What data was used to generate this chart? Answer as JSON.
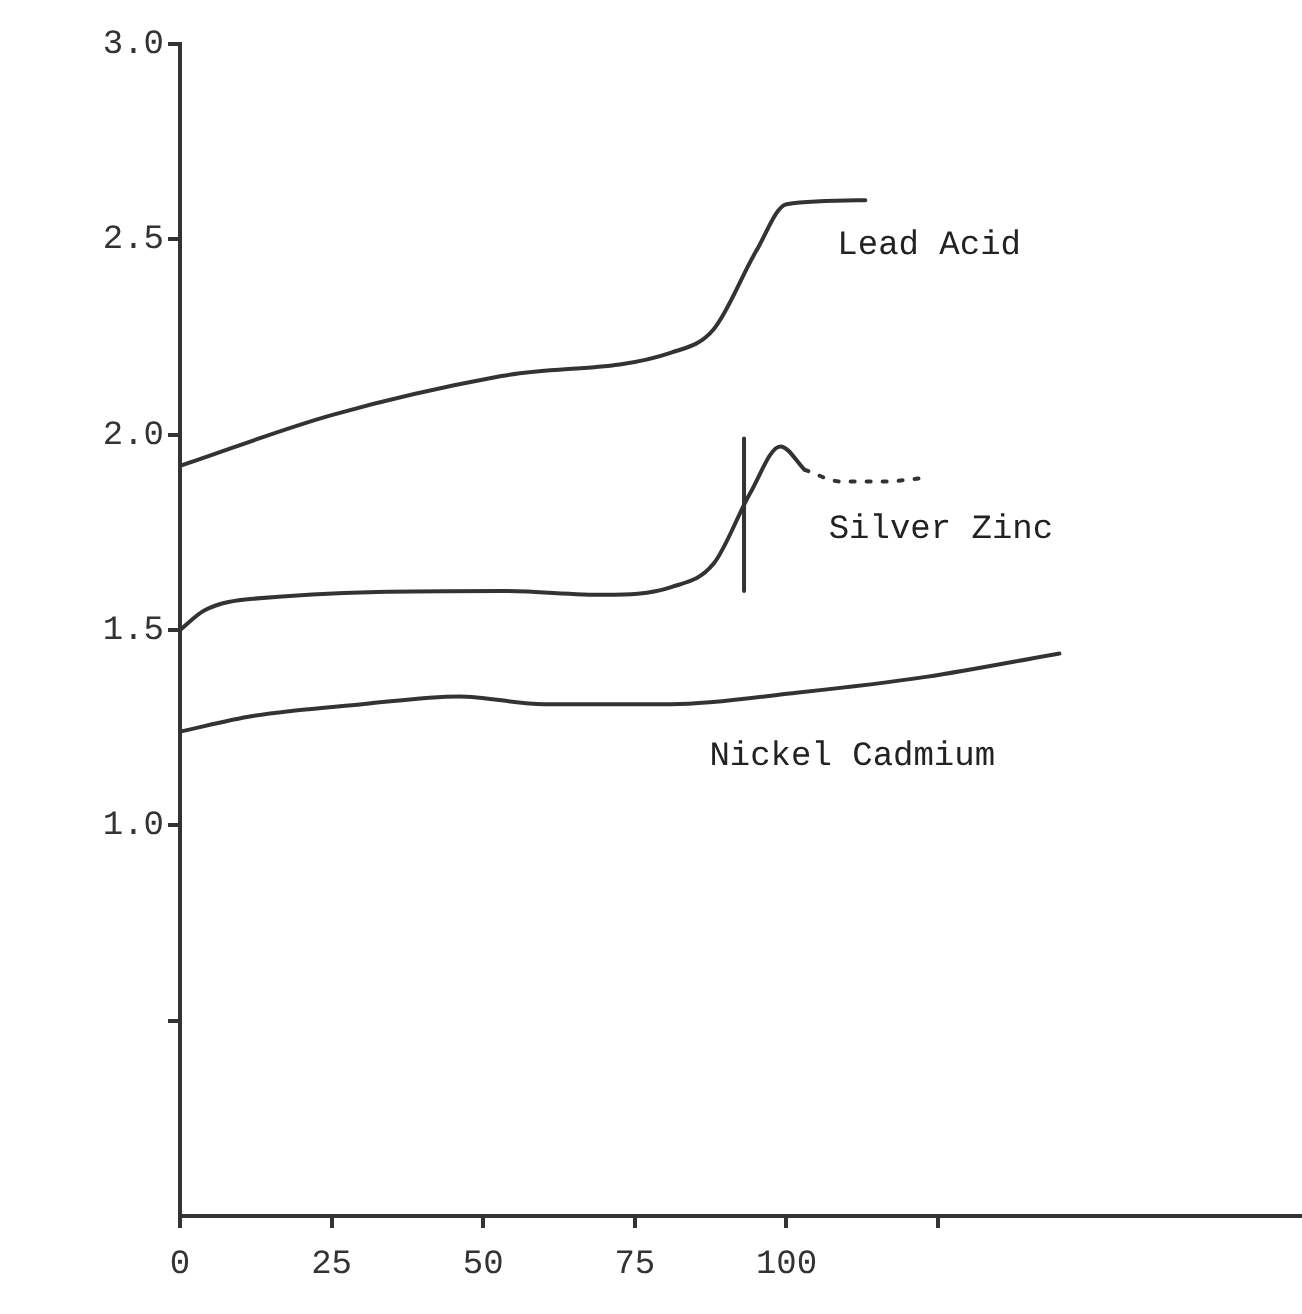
{
  "chart_data": {
    "type": "line",
    "xlim": [
      0,
      185
    ],
    "xticks": [
      0,
      25,
      50,
      75,
      100,
      {
        "value": 125,
        "label": null
      }
    ],
    "ylim": [
      0,
      3.0
    ],
    "yticks": [
      {
        "value": 0.5,
        "label": null
      },
      {
        "value": 1,
        "label": "1.0"
      },
      {
        "value": 1.5,
        "label": "1.5"
      },
      {
        "value": 2,
        "label": "2.0"
      },
      {
        "value": 2.5,
        "label": "2.5"
      },
      {
        "value": 3,
        "label": "3.0"
      }
    ],
    "marker": "none",
    "series": [
      {
        "name": "Lead Acid",
        "color": "#333333",
        "x": [
          0,
          25,
          53,
          81,
          88,
          95,
          100,
          113
        ],
        "values": [
          1.92,
          2.05,
          2.15,
          2.21,
          2.27,
          2.47,
          2.59,
          2.6
        ]
      },
      {
        "name": "Silver Zinc",
        "color": "#333333",
        "x": [
          0,
          4,
          12,
          53,
          70,
          81,
          88,
          94,
          99,
          103
        ],
        "values": [
          1.5,
          1.55,
          1.58,
          1.6,
          1.59,
          1.61,
          1.67,
          1.85,
          1.97,
          1.91
        ]
      },
      {
        "color": "#333333",
        "line_style": "dotted",
        "x": [
          103,
          109,
          116,
          123
        ],
        "values": [
          1.91,
          1.88,
          1.88,
          1.89
        ]
      },
      {
        "color": "#333333",
        "x": [
          93,
          93
        ],
        "values": [
          1.6,
          1.99
        ]
      },
      {
        "name": "Nickel Cadmium",
        "color": "#333333",
        "x": [
          0,
          12,
          30,
          46,
          60,
          81,
          102,
          123,
          145
        ],
        "values": [
          1.24,
          1.28,
          1.31,
          1.33,
          1.31,
          1.31,
          1.34,
          1.38,
          1.44
        ]
      }
    ]
  }
}
